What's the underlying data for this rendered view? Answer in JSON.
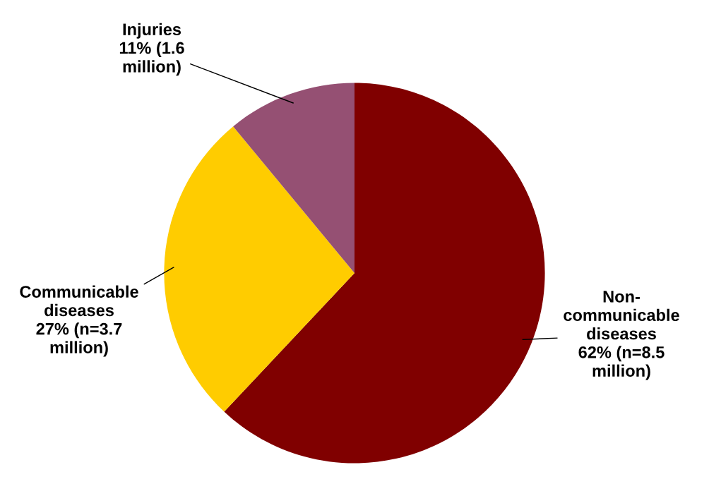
{
  "chart_data": {
    "type": "pie",
    "categories": [
      "Non-\ncommunicable\ndiseases\n62% (n=8.5\nmillion)",
      "Communicable\ndiseases\n27% (n=3.7\nmillion)",
      "Injuries\n11% (1.6\nmillion)"
    ],
    "values": [
      62,
      27,
      11
    ],
    "colors": [
      "#800000",
      "#ffcc00",
      "#955073"
    ]
  }
}
